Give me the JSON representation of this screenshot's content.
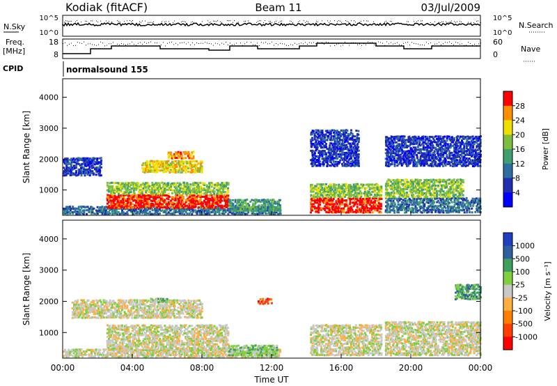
{
  "header": {
    "station": "Kodiak (fitACF)",
    "beam": "Beam 11",
    "date": "03/Jul/2009"
  },
  "summary": {
    "left_top": "N.Sky",
    "right_top": "N.Search",
    "left_mid_1": "Freq.",
    "left_mid_2": "[MHz]",
    "right_mid": "Nave",
    "cpid_label": "CPID",
    "cpid_value": "normalsound 155",
    "tick_top_hi": "10^5",
    "tick_top_lo": "10^0",
    "tick_right_top_hi": "10^5",
    "tick_right_top_lo": "10^0",
    "freq_ticks": [
      "18",
      "8"
    ],
    "nave_ticks": [
      "60",
      "0"
    ]
  },
  "xaxis": {
    "label": "Time UT",
    "ticks": [
      "00:00",
      "04:00",
      "08:00",
      "12:00",
      "16:00",
      "20:00",
      "00:00"
    ]
  },
  "colors": {
    "background": "#ffffff",
    "grey": "#c8c8c8"
  },
  "chart_data": [
    {
      "type": "heatmap",
      "title": "",
      "ylabel": "Slant Range [km]",
      "yticks": [
        "1000",
        "2000",
        "3000",
        "4000"
      ],
      "ylim": [
        180,
        4600
      ],
      "xlim_hours": [
        0,
        24
      ],
      "colorbar": {
        "label": "Power [dB]",
        "ticks": [
          "4",
          "8",
          "12",
          "16",
          "20",
          "24",
          "28"
        ],
        "colors": [
          "#0000ff",
          "#1f2fb0",
          "#2f6f9f",
          "#3f9f6f",
          "#7fbf3f",
          "#efdf00",
          "#ff8f00",
          "#ff0000"
        ]
      },
      "regions": [
        {
          "t0": 0.0,
          "t1": 12.5,
          "r0": 250,
          "r1": 520,
          "level": 2
        },
        {
          "t0": 2.5,
          "t1": 9.5,
          "r0": 450,
          "r1": 900,
          "level": 7
        },
        {
          "t0": 2.5,
          "t1": 9.5,
          "r0": 900,
          "r1": 1300,
          "level": 4
        },
        {
          "t0": 0.0,
          "t1": 2.2,
          "r0": 1500,
          "r1": 2100,
          "level": 1
        },
        {
          "t0": 4.5,
          "t1": 8.0,
          "r0": 1600,
          "r1": 2000,
          "level": 5
        },
        {
          "t0": 6.0,
          "t1": 7.5,
          "r0": 2050,
          "r1": 2300,
          "level": 6
        },
        {
          "t0": 9.5,
          "t1": 12.5,
          "r0": 350,
          "r1": 750,
          "level": 3
        },
        {
          "t0": 14.2,
          "t1": 18.3,
          "r0": 300,
          "r1": 800,
          "level": 7
        },
        {
          "t0": 14.2,
          "t1": 18.3,
          "r0": 800,
          "r1": 1250,
          "level": 4
        },
        {
          "t0": 18.5,
          "t1": 24.0,
          "r0": 300,
          "r1": 800,
          "level": 2
        },
        {
          "t0": 18.5,
          "t1": 23.0,
          "r0": 800,
          "r1": 1400,
          "level": 4
        },
        {
          "t0": 14.2,
          "t1": 17.0,
          "r0": 1800,
          "r1": 3000,
          "level": 1
        },
        {
          "t0": 18.5,
          "t1": 24.0,
          "r0": 1800,
          "r1": 2800,
          "level": 1
        }
      ]
    },
    {
      "type": "heatmap",
      "title": "",
      "ylabel": "Slant Range [km]",
      "yticks": [
        "1000",
        "2000",
        "3000",
        "4000"
      ],
      "ylim": [
        180,
        4600
      ],
      "xlim_hours": [
        0,
        24
      ],
      "colorbar": {
        "label": "Velocity [m s⁻¹]",
        "ticks": [
          "1000",
          "500",
          "100",
          "25",
          "-25",
          "-100",
          "-500",
          "-1000"
        ],
        "colors": [
          "#1f3fbf",
          "#2f5f9f",
          "#3f9f5f",
          "#7fcf3f",
          "#c8c8c8",
          "#ffaf3f",
          "#ff7f00",
          "#ff3f00",
          "#ff0000"
        ]
      },
      "regions": [
        {
          "t0": 0.0,
          "t1": 12.5,
          "r0": 250,
          "r1": 520,
          "level": 4
        },
        {
          "t0": 2.5,
          "t1": 9.5,
          "r0": 450,
          "r1": 1300,
          "level": 4
        },
        {
          "t0": 0.5,
          "t1": 8.0,
          "r0": 1500,
          "r1": 2100,
          "level": 4
        },
        {
          "t0": 9.5,
          "t1": 12.3,
          "r0": 300,
          "r1": 650,
          "level": 3
        },
        {
          "t0": 14.2,
          "t1": 18.3,
          "r0": 300,
          "r1": 1300,
          "level": 4
        },
        {
          "t0": 18.5,
          "t1": 24.0,
          "r0": 300,
          "r1": 1400,
          "level": 4
        },
        {
          "t0": 5.0,
          "t1": 6.0,
          "r0": 2000,
          "r1": 2150,
          "level": 3
        },
        {
          "t0": 11.2,
          "t1": 12.0,
          "r0": 1950,
          "r1": 2150,
          "level": 7
        },
        {
          "t0": 22.5,
          "t1": 24.0,
          "r0": 2100,
          "r1": 2600,
          "level": 2
        }
      ]
    }
  ]
}
